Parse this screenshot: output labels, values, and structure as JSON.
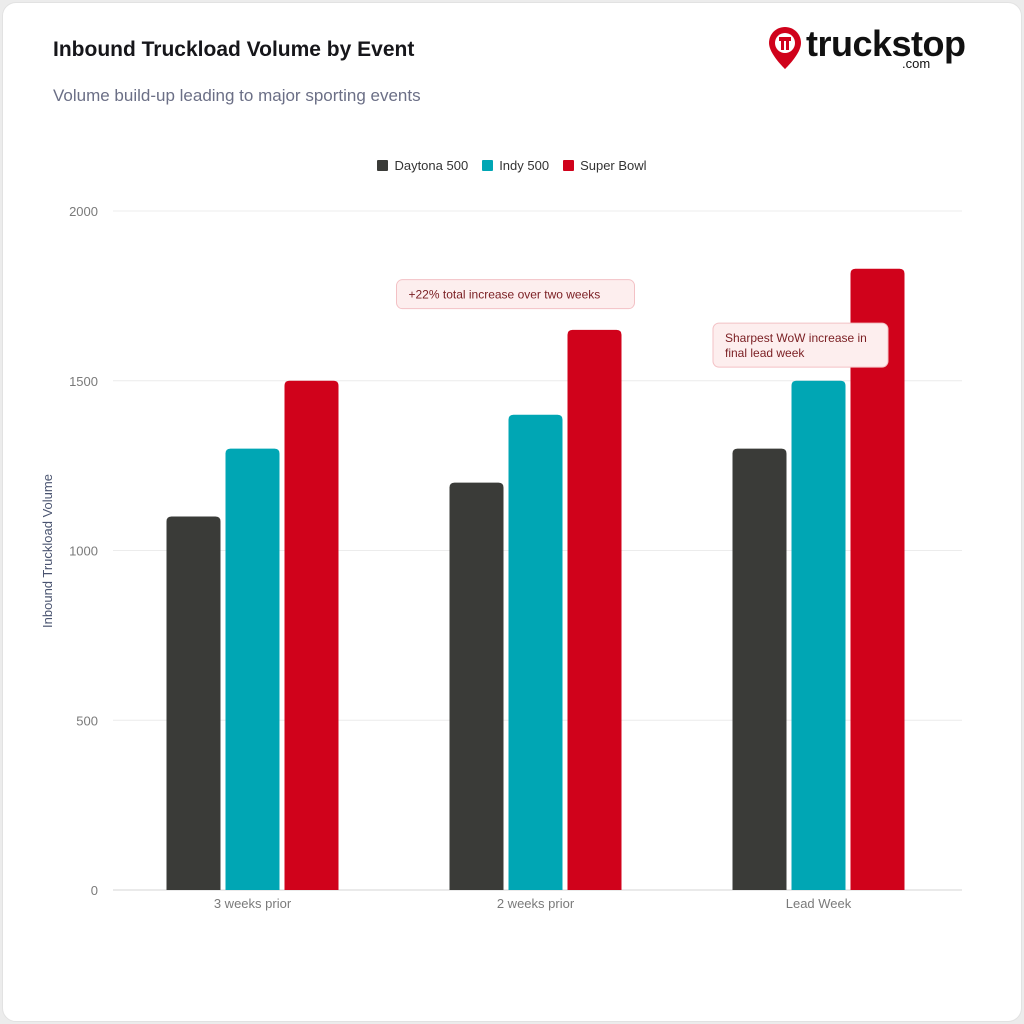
{
  "title": "Inbound Truckload Volume by Event",
  "subtitle": "Volume build-up leading to major sporting events",
  "logo": {
    "word": "truckstop",
    "suffix": ".com"
  },
  "chart_data": {
    "type": "bar",
    "categories": [
      "3 weeks prior",
      "2 weeks prior",
      "Lead Week"
    ],
    "series": [
      {
        "name": "Daytona 500",
        "color": "#3a3b38",
        "values": [
          1100,
          1200,
          1300
        ]
      },
      {
        "name": "Indy 500",
        "color": "#00a6b4",
        "values": [
          1300,
          1400,
          1500
        ]
      },
      {
        "name": "Super Bowl",
        "color": "#d0021b",
        "values": [
          1500,
          1650,
          1830
        ]
      }
    ],
    "ylabel": "Inbound Truckload Volume",
    "ylim": [
      0,
      2000
    ],
    "yticks": [
      0,
      500,
      1000,
      1500,
      2000
    ],
    "grid": true,
    "legend_position": "top-center",
    "annotations": [
      {
        "lines": [
          "+22% total increase over two weeks"
        ],
        "category": "2 weeks prior",
        "y": 1755
      },
      {
        "lines": [
          "Sharpest WoW increase in",
          "final lead week"
        ],
        "category": "Lead Week",
        "y": 1605
      }
    ]
  }
}
